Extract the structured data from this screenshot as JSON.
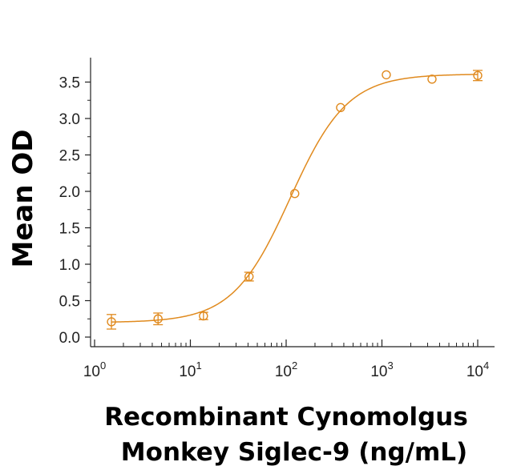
{
  "chart_data": {
    "type": "scatter",
    "xlabel_lines": [
      "Recombinant Cynomolgus",
      "Monkey Siglec-9 (ng/mL)"
    ],
    "ylabel": "Mean OD",
    "x_scale": "log",
    "xlim": [
      1,
      10000
    ],
    "ylim": [
      0,
      3.6
    ],
    "x_ticks": [
      {
        "value": 1,
        "base": "10",
        "exp": "0"
      },
      {
        "value": 10,
        "base": "10",
        "exp": "1"
      },
      {
        "value": 100,
        "base": "10",
        "exp": "2"
      },
      {
        "value": 1000,
        "base": "10",
        "exp": "3"
      },
      {
        "value": 10000,
        "base": "10",
        "exp": "4"
      }
    ],
    "y_ticks": [
      "0.0",
      "0.5",
      "1.0",
      "1.5",
      "2.0",
      "2.5",
      "3.0",
      "3.5"
    ],
    "color": "#E08A1E",
    "points": [
      {
        "x": 1.5,
        "y": 0.21,
        "err": 0.1
      },
      {
        "x": 4.6,
        "y": 0.25,
        "err": 0.08
      },
      {
        "x": 13.7,
        "y": 0.29,
        "err": 0.05
      },
      {
        "x": 41,
        "y": 0.83,
        "err": 0.06
      },
      {
        "x": 123,
        "y": 1.97,
        "err": 0
      },
      {
        "x": 370,
        "y": 3.15,
        "err": 0
      },
      {
        "x": 1111,
        "y": 3.6,
        "err": 0
      },
      {
        "x": 3333,
        "y": 3.54,
        "err": 0
      },
      {
        "x": 10000,
        "y": 3.59,
        "err": 0.07
      }
    ],
    "fit": {
      "bottom": 0.2,
      "top": 3.61,
      "ec50": 110,
      "hill": 1.45
    },
    "grid": false,
    "legend": "none"
  }
}
